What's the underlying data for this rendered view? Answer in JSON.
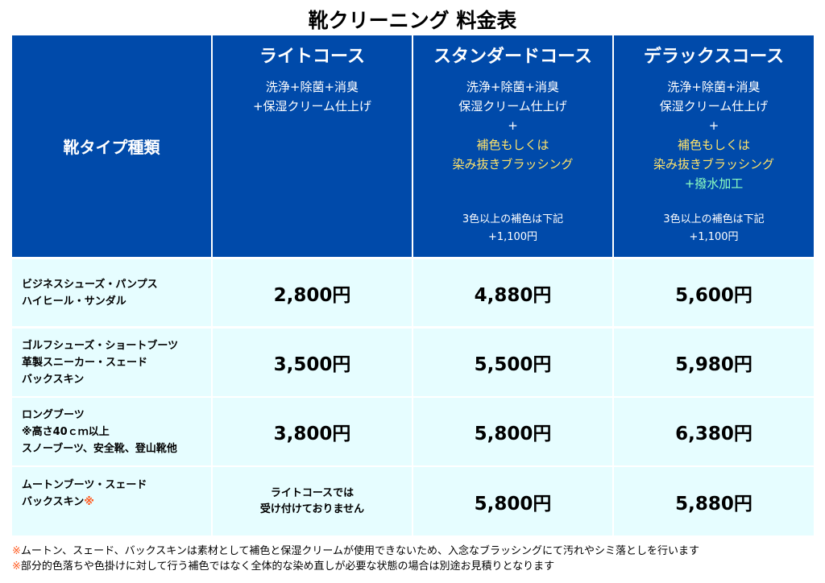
{
  "title": "靴クリーニング 料金表",
  "header": {
    "type_label": "靴タイプ種類",
    "courses": [
      {
        "name": "ライトコース",
        "desc": [
          "洗浄+除菌+消臭",
          "+保湿クリーム仕上げ"
        ]
      },
      {
        "name": "スタンダードコース",
        "desc": [
          "洗浄+除菌+消臭",
          "保湿クリーム仕上げ"
        ],
        "plus": "+",
        "yellow": [
          "補色もしくは",
          "染み抜きブラッシング"
        ],
        "extra": [
          "3色以上の補色は下記",
          "+1,100円"
        ]
      },
      {
        "name": "デラックスコース",
        "desc": [
          "洗浄+除菌+消臭",
          "保湿クリーム仕上げ"
        ],
        "plus": "+",
        "yellow": [
          "補色もしくは",
          "染み抜きブラッシング"
        ],
        "green": "+撥水加工",
        "extra": [
          "3色以上の補色は下記",
          "+1,100円"
        ]
      }
    ]
  },
  "rows": [
    {
      "type": [
        "ビジネスシューズ・パンプス",
        "ハイヒール・サンダル"
      ],
      "prices": [
        "2,800円",
        "4,880円",
        "5,600円"
      ]
    },
    {
      "type": [
        "ゴルフシューズ・ショートブーツ",
        "革製スニーカー・スェード",
        "バックスキン"
      ],
      "prices": [
        "3,500円",
        "5,500円",
        "5,980円"
      ]
    },
    {
      "type": [
        "ロングブーツ",
        "※高さ40ｃｍ以上",
        "スノーブーツ、安全靴、登山靴他"
      ],
      "prices": [
        "3,800円",
        "5,800円",
        "6,380円"
      ]
    },
    {
      "type": [
        "ムートンブーツ・スェード",
        "バックスキン"
      ],
      "type_mark": "※",
      "na": [
        "ライトコースでは",
        "受け付けておりません"
      ],
      "prices": [
        "",
        "5,800円",
        "5,880円"
      ]
    }
  ],
  "notes": [
    {
      "mark": "※",
      "text": "ムートン、スェード、バックスキンは素材として補色と保湿クリームが使用できないため、入念なブラッシングにて汚れやシミ落としを行います"
    },
    {
      "mark": "※",
      "text": "部分的色落ちや色掛けに対して行う補色ではなく全体的な染め直しが必要な状態の場合は別途お見積りとなります"
    }
  ],
  "colors": {
    "header_bg": "#004AAA",
    "row_bg": "#E6FDFF",
    "highlight_yellow": "#FFE36A",
    "highlight_green": "#8CFFC2",
    "note_mark": "#FF5A1F"
  }
}
